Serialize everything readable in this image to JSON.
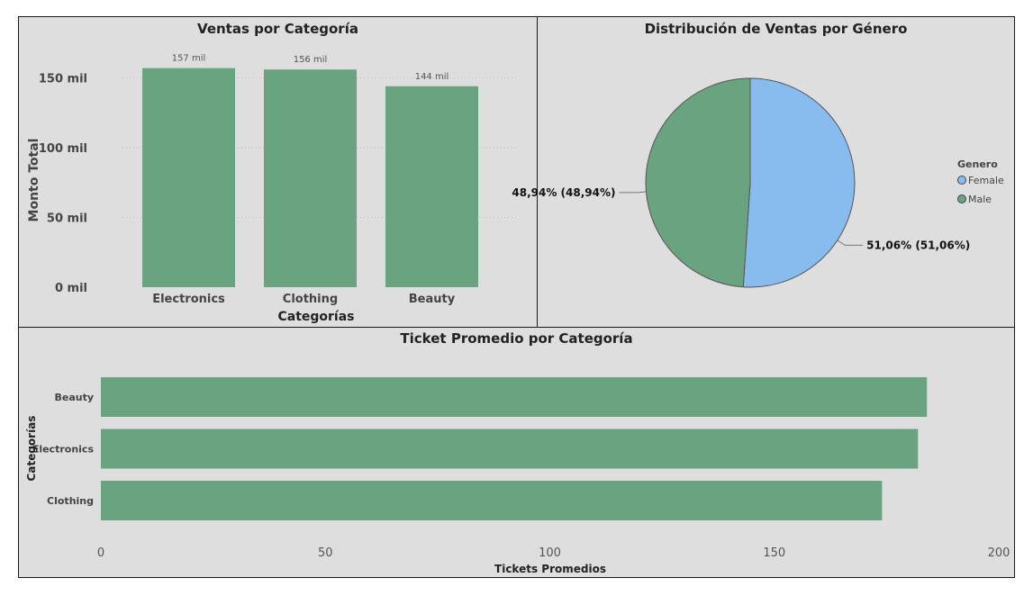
{
  "colors": {
    "green": "#6aa380",
    "blue": "#89bcee",
    "background": "#dedede"
  },
  "panels": {
    "sales_by_category": {
      "title": "Ventas por Categoría"
    },
    "gender_distribution": {
      "title": "Distribución de Ventas por Género"
    },
    "avg_ticket": {
      "title": "Ticket Promedio por Categoría"
    }
  },
  "chart_data": [
    {
      "type": "bar",
      "title": "Ventas por Categoría",
      "xlabel": "Categorías",
      "ylabel": "Monto Total",
      "categories": [
        "Electronics",
        "Clothing",
        "Beauty"
      ],
      "values": [
        157000,
        156000,
        144000
      ],
      "data_labels": [
        "157 mil",
        "156 mil",
        "144 mil"
      ],
      "ylim": [
        0,
        160000
      ],
      "yticks": [
        0,
        50000,
        100000,
        150000
      ],
      "ytick_labels": [
        "0 mil",
        "50 mil",
        "100 mil",
        "150 mil"
      ],
      "color": "#6aa380",
      "grid": true
    },
    {
      "type": "pie",
      "title": "Distribución de Ventas por Género",
      "legend_title": "Genero",
      "legend_position": "right",
      "slices": [
        {
          "name": "Female",
          "value": 51.06,
          "label": "51,06% (51,06%)",
          "color": "#89bcee"
        },
        {
          "name": "Male",
          "value": 48.94,
          "label": "48,94% (48,94%)",
          "color": "#6aa380"
        }
      ]
    },
    {
      "type": "bar",
      "orientation": "horizontal",
      "title": "Ticket Promedio por Categoría",
      "xlabel": "Tickets Promedios",
      "ylabel": "Categorías",
      "categories": [
        "Beauty",
        "Electronics",
        "Clothing"
      ],
      "values": [
        184,
        182,
        174
      ],
      "xlim": [
        0,
        200
      ],
      "xticks": [
        0,
        50,
        100,
        150,
        200
      ],
      "color": "#6aa380",
      "grid": false
    }
  ]
}
